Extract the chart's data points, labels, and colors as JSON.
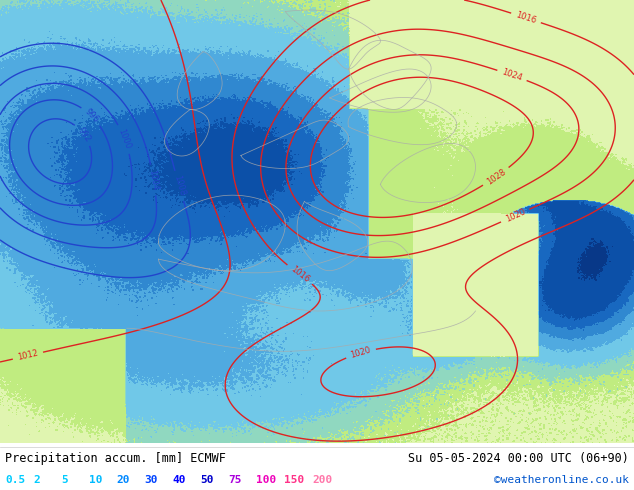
{
  "title_left": "Precipitation accum. [mm] ECMWF",
  "title_right": "Su 05-05-2024 00:00 UTC (06+90)",
  "watermark": "©weatheronline.co.uk",
  "colorbar_values": [
    "0.5",
    "2",
    "5",
    "10",
    "20",
    "30",
    "40",
    "50",
    "75",
    "100",
    "150",
    "200"
  ],
  "colorbar_label_colors": [
    "#00ccff",
    "#00ccff",
    "#00ccff",
    "#00bbff",
    "#0088ff",
    "#0044ff",
    "#0000ff",
    "#0000cc",
    "#aa00dd",
    "#ee00bb",
    "#ff3388",
    "#ff77aa"
  ],
  "bg_color": "#ffffff",
  "map_bg_color": "#aaddff",
  "precip_boundaries": [
    0.5,
    2,
    5,
    10,
    20,
    30,
    40,
    50,
    75,
    100,
    150,
    200
  ],
  "precip_colors": [
    "#e8f8e8",
    "#c8f0b0",
    "#a0e890",
    "#80d8d8",
    "#60c0f0",
    "#40a0e8",
    "#2080d8",
    "#1060c0",
    "#0840a0",
    "#061888",
    "#040c60",
    "#020840"
  ],
  "land_color": "#d8d8d8",
  "sea_color": "#aaddff",
  "title_fontsize": 8.5,
  "label_fontsize": 8,
  "watermark_fontsize": 8,
  "contour_blue_levels": [
    988,
    992,
    996,
    1000,
    1004,
    1008
  ],
  "contour_red_levels": [
    1012,
    1016,
    1020,
    1024,
    1028
  ],
  "border_color": "#aaaaaa"
}
